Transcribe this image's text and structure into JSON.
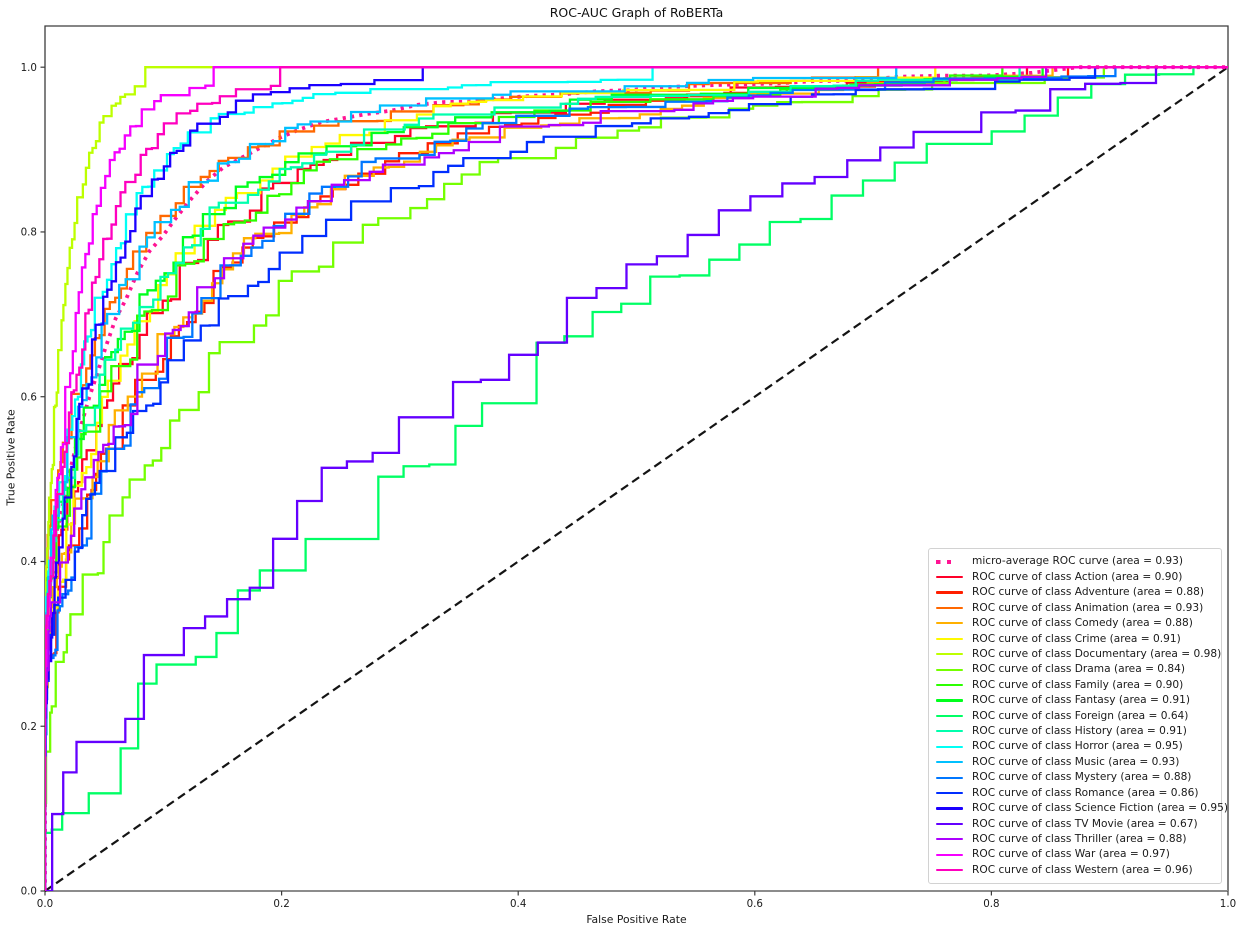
{
  "chart_data": {
    "type": "line",
    "title": "ROC-AUC Graph of RoBERTa",
    "xlabel": "False Positive Rate",
    "ylabel": "True Positive Rate",
    "xlim": [
      0.0,
      1.0
    ],
    "ylim": [
      0.0,
      1.05
    ],
    "xtick_labels": [
      "0.0",
      "0.2",
      "0.4",
      "0.6",
      "0.8",
      "1.0"
    ],
    "ytick_labels": [
      "0.0",
      "0.2",
      "0.4",
      "0.6",
      "0.8",
      "1.0"
    ],
    "grid": false,
    "legend_position": "lower right",
    "reference_line": {
      "style": "dashed",
      "color": "#141414",
      "from": [
        0,
        0
      ],
      "to": [
        1,
        1
      ]
    },
    "series": [
      {
        "class": "micro-average",
        "label": "micro-average ROC curve (area = 0.93)",
        "auc": 0.93,
        "color": "#FF1493",
        "style": "dotted"
      },
      {
        "class": "Action",
        "label": "ROC curve of class Action (area = 0.90)",
        "auc": 0.9,
        "color": "#FF0029",
        "style": "solid"
      },
      {
        "class": "Adventure",
        "label": "ROC curve of class Adventure (area = 0.88)",
        "auc": 0.88,
        "color": "#FF1F00",
        "style": "solid"
      },
      {
        "class": "Animation",
        "label": "ROC curve of class Animation (area = 0.93)",
        "auc": 0.93,
        "color": "#FF6800",
        "style": "solid"
      },
      {
        "class": "Comedy",
        "label": "ROC curve of class Comedy (area = 0.88)",
        "auc": 0.88,
        "color": "#FFB000",
        "style": "solid"
      },
      {
        "class": "Crime",
        "label": "ROC curve of class Crime (area = 0.91)",
        "auc": 0.91,
        "color": "#FFF900",
        "style": "solid"
      },
      {
        "class": "Documentary",
        "label": "ROC curve of class Documentary (area = 0.98)",
        "auc": 0.98,
        "color": "#BDFF00",
        "style": "solid"
      },
      {
        "class": "Drama",
        "label": "ROC curve of class Drama (area = 0.84)",
        "auc": 0.84,
        "color": "#74FF00",
        "style": "solid"
      },
      {
        "class": "Family",
        "label": "ROC curve of class Family (area = 0.90)",
        "auc": 0.9,
        "color": "#2CFF00",
        "style": "solid"
      },
      {
        "class": "Fantasy",
        "label": "ROC curve of class Fantasy (area = 0.91)",
        "auc": 0.91,
        "color": "#00FF1D",
        "style": "solid"
      },
      {
        "class": "Foreign",
        "label": "ROC curve of class Foreign (area = 0.64)",
        "auc": 0.64,
        "color": "#00FF65",
        "style": "solid"
      },
      {
        "class": "History",
        "label": "ROC curve of class History (area = 0.91)",
        "auc": 0.91,
        "color": "#00FFAD",
        "style": "solid"
      },
      {
        "class": "Horror",
        "label": "ROC curve of class Horror (area = 0.95)",
        "auc": 0.95,
        "color": "#00FFF5",
        "style": "solid"
      },
      {
        "class": "Music",
        "label": "ROC curve of class Music (area = 0.93)",
        "auc": 0.93,
        "color": "#00C0FF",
        "style": "solid"
      },
      {
        "class": "Mystery",
        "label": "ROC curve of class Mystery (area = 0.88)",
        "auc": 0.88,
        "color": "#0077FF",
        "style": "solid"
      },
      {
        "class": "Romance",
        "label": "ROC curve of class Romance (area = 0.86)",
        "auc": 0.86,
        "color": "#002EFF",
        "style": "solid"
      },
      {
        "class": "Science Fiction",
        "label": "ROC curve of class Science Fiction (area = 0.95)",
        "auc": 0.95,
        "color": "#1B00FF",
        "style": "solid"
      },
      {
        "class": "TV Movie",
        "label": "ROC curve of class TV Movie (area = 0.67)",
        "auc": 0.67,
        "color": "#6400FF",
        "style": "solid"
      },
      {
        "class": "Thriller",
        "label": "ROC curve of class Thriller (area = 0.88)",
        "auc": 0.88,
        "color": "#AD00FF",
        "style": "solid"
      },
      {
        "class": "War",
        "label": "ROC curve of class War (area = 0.97)",
        "auc": 0.97,
        "color": "#F600FF",
        "style": "solid"
      },
      {
        "class": "Western",
        "label": "ROC curve of class Western (area = 0.96)",
        "auc": 0.96,
        "color": "#FF00BF",
        "style": "solid"
      }
    ]
  }
}
